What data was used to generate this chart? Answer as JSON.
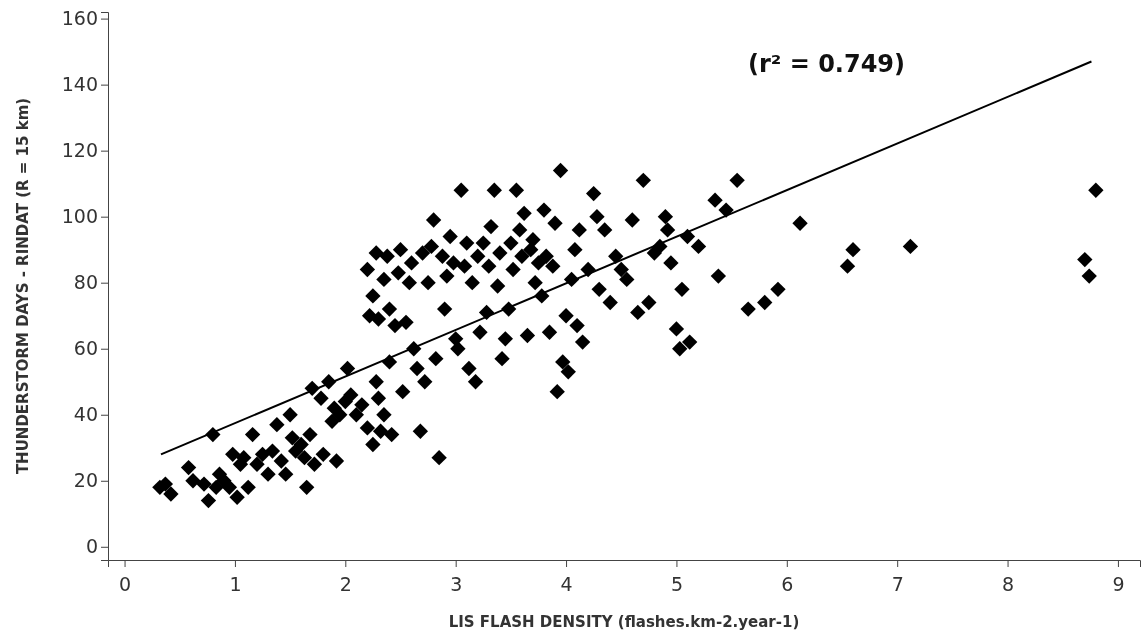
{
  "chart_data": {
    "type": "scatter",
    "xlabel": "LIS FLASH DENSITY (flashes.km-2.year-1)",
    "ylabel": "THUNDERSTORM DAYS - RINDAT (R = 15 km)",
    "annotations": [
      "(r² = 0.749)"
    ],
    "xlim": [
      -0.15,
      9.2
    ],
    "ylim": [
      -4,
      162
    ],
    "xticks": [
      0,
      1,
      2,
      3,
      4,
      5,
      6,
      7,
      8,
      9
    ],
    "yticks": [
      0,
      20,
      40,
      60,
      80,
      100,
      120,
      140,
      160
    ],
    "grid": false,
    "series": [
      {
        "color": "#000000",
        "marker": "diamond",
        "x": [
          0.32,
          0.37,
          0.42,
          0.58,
          0.62,
          0.72,
          0.76,
          0.8,
          0.83,
          0.86,
          0.9,
          0.95,
          0.98,
          1.02,
          1.05,
          1.08,
          1.12,
          1.16,
          1.2,
          1.25,
          1.3,
          1.34,
          1.38,
          1.42,
          1.46,
          1.5,
          1.52,
          1.55,
          1.6,
          1.63,
          1.65,
          1.68,
          1.7,
          1.72,
          1.78,
          1.8,
          1.85,
          1.88,
          1.9,
          1.92,
          1.95,
          2.0,
          2.02,
          2.05,
          2.1,
          2.15,
          2.2,
          2.25,
          2.28,
          2.3,
          2.32,
          2.35,
          2.4,
          2.42,
          2.2,
          2.22,
          2.25,
          2.28,
          2.3,
          2.35,
          2.38,
          2.4,
          2.45,
          2.48,
          2.5,
          2.52,
          2.55,
          2.58,
          2.6,
          2.62,
          2.65,
          2.68,
          2.7,
          2.72,
          2.75,
          2.78,
          2.8,
          2.82,
          2.85,
          2.88,
          2.9,
          2.92,
          2.95,
          2.98,
          3.0,
          3.02,
          3.05,
          3.08,
          3.1,
          3.12,
          3.15,
          3.18,
          3.2,
          3.22,
          3.25,
          3.28,
          3.3,
          3.32,
          3.35,
          3.38,
          3.4,
          3.42,
          3.45,
          3.48,
          3.5,
          3.52,
          3.55,
          3.58,
          3.6,
          3.62,
          3.65,
          3.68,
          3.7,
          3.72,
          3.75,
          3.78,
          3.8,
          3.82,
          3.85,
          3.88,
          3.9,
          3.92,
          3.95,
          3.97,
          4.0,
          4.02,
          4.05,
          4.08,
          4.1,
          4.12,
          4.15,
          4.2,
          4.25,
          4.28,
          4.3,
          4.35,
          4.4,
          4.45,
          4.5,
          4.55,
          4.6,
          4.65,
          4.7,
          4.75,
          4.8,
          4.85,
          4.9,
          4.92,
          4.95,
          5.0,
          5.03,
          5.05,
          5.1,
          5.12,
          5.2,
          5.35,
          5.38,
          5.45,
          5.55,
          5.65,
          5.8,
          5.92,
          6.12,
          6.55,
          6.6,
          7.12,
          8.7,
          8.74,
          8.8
        ],
        "values": [
          18,
          19,
          16,
          24,
          20,
          19,
          14,
          34,
          18,
          22,
          20,
          18,
          28,
          15,
          25,
          27,
          18,
          34,
          25,
          28,
          22,
          29,
          37,
          26,
          22,
          40,
          33,
          29,
          31,
          27,
          18,
          34,
          48,
          25,
          45,
          28,
          50,
          38,
          42,
          26,
          40,
          44,
          54,
          46,
          40,
          43,
          36,
          31,
          50,
          45,
          35,
          40,
          56,
          34,
          84,
          70,
          76,
          89,
          69,
          81,
          88,
          72,
          67,
          83,
          90,
          47,
          68,
          80,
          86,
          60,
          54,
          35,
          89,
          50,
          80,
          91,
          99,
          57,
          27,
          88,
          72,
          82,
          94,
          86,
          63,
          60,
          108,
          85,
          92,
          54,
          80,
          50,
          88,
          65,
          92,
          71,
          85,
          97,
          108,
          79,
          89,
          57,
          63,
          72,
          92,
          84,
          108,
          96,
          88,
          101,
          64,
          90,
          93,
          80,
          86,
          76,
          102,
          88,
          65,
          85,
          98,
          47,
          114,
          56,
          70,
          53,
          81,
          90,
          67,
          96,
          62,
          84,
          107,
          100,
          78,
          96,
          74,
          88,
          84,
          81,
          99,
          71,
          111,
          74,
          89,
          91,
          100,
          96,
          86,
          66,
          60,
          78,
          94,
          62,
          91,
          105,
          82,
          102,
          111,
          72,
          74,
          78,
          98,
          85,
          90,
          91,
          87,
          82,
          108
        ]
      },
      {
        "type": "line",
        "color": "#000000",
        "x": [
          0.33,
          8.76
        ],
        "values": [
          28,
          147
        ]
      }
    ]
  }
}
